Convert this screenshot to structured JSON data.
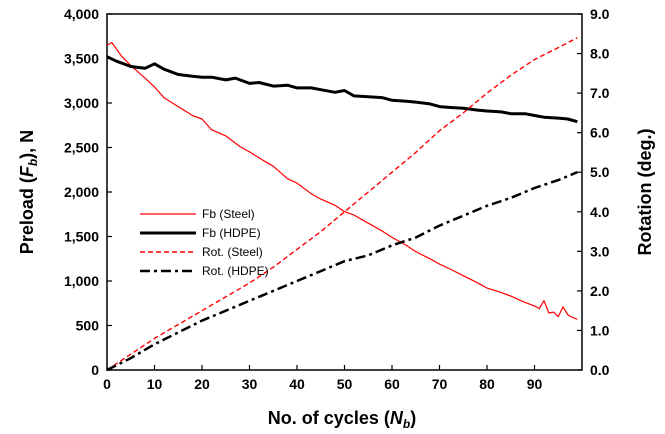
{
  "chart_data": {
    "type": "line",
    "x_label": {
      "prefix": "No. of cycles (",
      "symbol": "N",
      "subscript": "b",
      "suffix": ")"
    },
    "y_left_label": {
      "prefix": "Preload (",
      "symbol": "F",
      "subscript": "b",
      "suffix": "), N"
    },
    "y_right_label": "Rotation (deg.)",
    "x_range": [
      0,
      100
    ],
    "y_left_range": [
      0,
      4000
    ],
    "y_right_range": [
      0,
      9
    ],
    "x_ticks": [
      0,
      10,
      20,
      30,
      40,
      50,
      60,
      70,
      80,
      90
    ],
    "x_tick_labels": [
      "0",
      "10",
      "20",
      "30",
      "40",
      "50",
      "60",
      "70",
      "80",
      "90"
    ],
    "y_left_ticks": [
      0,
      500,
      1000,
      1500,
      2000,
      2500,
      3000,
      3500,
      4000
    ],
    "y_left_tick_labels": [
      "0",
      "500",
      "1,000",
      "1,500",
      "2,000",
      "2,500",
      "3,000",
      "3,500",
      "4,000"
    ],
    "y_right_ticks": [
      0,
      1,
      2,
      3,
      4,
      5,
      6,
      7,
      8,
      9
    ],
    "y_right_tick_labels": [
      "0.0",
      "1.0",
      "2.0",
      "3.0",
      "4.0",
      "5.0",
      "6.0",
      "7.0",
      "8.0",
      "9.0"
    ],
    "grid": false,
    "legend_position": "center-left",
    "series": [
      {
        "name": "Fb (Steel)",
        "axis": "left",
        "color": "#ff0000",
        "style": "solid",
        "width": 1.2,
        "x": [
          0,
          1,
          3,
          5,
          8,
          10,
          12,
          15,
          18,
          20,
          22,
          25,
          28,
          30,
          33,
          35,
          38,
          40,
          43,
          45,
          48,
          50,
          52,
          55,
          58,
          60,
          63,
          65,
          68,
          70,
          72,
          75,
          78,
          80,
          83,
          85,
          88,
          90,
          91,
          92,
          93,
          94,
          95,
          96,
          97,
          98,
          99
        ],
        "y": [
          3650,
          3680,
          3530,
          3420,
          3280,
          3180,
          3060,
          2960,
          2860,
          2820,
          2700,
          2630,
          2510,
          2450,
          2350,
          2290,
          2150,
          2100,
          1980,
          1920,
          1850,
          1780,
          1740,
          1650,
          1560,
          1490,
          1400,
          1330,
          1250,
          1190,
          1140,
          1060,
          980,
          920,
          870,
          830,
          760,
          720,
          690,
          780,
          640,
          650,
          600,
          710,
          620,
          590,
          570
        ]
      },
      {
        "name": "Fb (HDPE)",
        "axis": "left",
        "color": "#000000",
        "style": "solid",
        "width": 3,
        "x": [
          0,
          2,
          5,
          8,
          10,
          12,
          15,
          18,
          20,
          22,
          25,
          27,
          30,
          32,
          35,
          38,
          40,
          43,
          45,
          48,
          50,
          52,
          55,
          58,
          60,
          63,
          65,
          68,
          70,
          72,
          75,
          78,
          80,
          83,
          85,
          88,
          90,
          92,
          95,
          97,
          99
        ],
        "y": [
          3520,
          3470,
          3410,
          3390,
          3440,
          3380,
          3320,
          3300,
          3290,
          3290,
          3260,
          3280,
          3220,
          3230,
          3190,
          3200,
          3170,
          3170,
          3150,
          3120,
          3140,
          3080,
          3070,
          3060,
          3030,
          3020,
          3010,
          2990,
          2960,
          2950,
          2940,
          2920,
          2910,
          2900,
          2880,
          2880,
          2860,
          2840,
          2830,
          2820,
          2790
        ]
      },
      {
        "name": "Rot. (Steel)",
        "axis": "right",
        "color": "#ff0000",
        "style": "dashed",
        "width": 1.4,
        "x": [
          0,
          5,
          10,
          15,
          20,
          25,
          30,
          35,
          40,
          45,
          50,
          55,
          60,
          65,
          70,
          75,
          80,
          85,
          90,
          95,
          99
        ],
        "y": [
          0.0,
          0.4,
          0.8,
          1.15,
          1.5,
          1.85,
          2.2,
          2.6,
          3.05,
          3.5,
          4.0,
          4.5,
          5.0,
          5.5,
          6.05,
          6.5,
          7.0,
          7.45,
          7.85,
          8.15,
          8.4
        ]
      },
      {
        "name": "Rot. (HDPE)",
        "axis": "right",
        "color": "#000000",
        "style": "dashdot",
        "width": 2.5,
        "x": [
          0,
          5,
          10,
          15,
          20,
          25,
          30,
          35,
          40,
          45,
          50,
          55,
          60,
          65,
          70,
          75,
          80,
          85,
          90,
          95,
          99
        ],
        "y": [
          0.0,
          0.3,
          0.65,
          0.95,
          1.25,
          1.5,
          1.75,
          2.0,
          2.25,
          2.5,
          2.75,
          2.9,
          3.15,
          3.35,
          3.65,
          3.9,
          4.15,
          4.35,
          4.6,
          4.8,
          5.0
        ]
      }
    ]
  }
}
